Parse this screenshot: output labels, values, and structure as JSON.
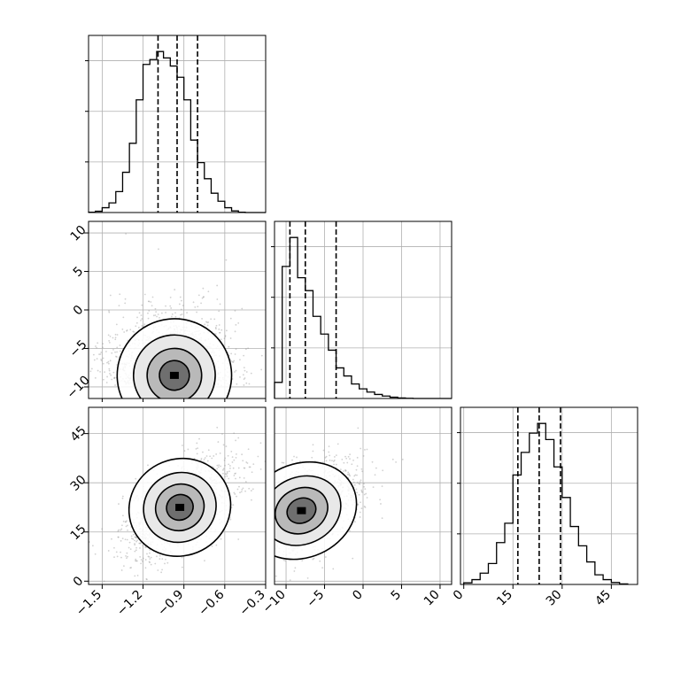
{
  "chart_data": {
    "type": "corner",
    "grid": true,
    "parameters": [
      {
        "ticks": [
          -1.5,
          -1.2,
          -0.9,
          -0.6,
          -0.3
        ],
        "tick_labels": [
          "−1.5",
          "−1.2",
          "−0.9",
          "−0.6",
          "−0.3"
        ],
        "range": [
          -1.6,
          -0.3
        ]
      },
      {
        "ticks": [
          -10,
          -5,
          0,
          5,
          10
        ],
        "tick_labels": [
          "−10",
          "−5",
          "0",
          "5",
          "10"
        ],
        "range": [
          -11.5,
          11.5
        ]
      },
      {
        "ticks": [
          0,
          15,
          30,
          45
        ],
        "tick_labels": [
          "0",
          "15",
          "30",
          "45"
        ],
        "range": [
          -1,
          53
        ]
      }
    ],
    "histograms": [
      {
        "param": 0,
        "bins": [
          -1.6,
          -1.55,
          -1.5,
          -1.45,
          -1.4,
          -1.35,
          -1.3,
          -1.25,
          -1.2,
          -1.15,
          -1.1,
          -1.05,
          -1.0,
          -0.95,
          -0.9,
          -0.85,
          -0.8,
          -0.75,
          -0.7,
          -0.65,
          -0.6,
          -0.55,
          -0.5,
          -0.45,
          -0.4,
          -0.35,
          -0.3
        ],
        "counts": [
          0.002,
          0.008,
          0.03,
          0.06,
          0.13,
          0.25,
          0.43,
          0.7,
          0.92,
          0.95,
          1.0,
          0.96,
          0.91,
          0.84,
          0.7,
          0.45,
          0.31,
          0.21,
          0.12,
          0.07,
          0.03,
          0.01,
          0.002,
          0,
          0,
          0
        ],
        "quantiles": [
          -1.09,
          -0.95,
          -0.8
        ]
      },
      {
        "param": 1,
        "bins": [
          -11.5,
          -10.5,
          -9.5,
          -8.5,
          -7.5,
          -6.5,
          -5.5,
          -4.5,
          -3.5,
          -2.5,
          -1.5,
          -0.5,
          0.5,
          1.5,
          2.5,
          3.5,
          4.5,
          5.5,
          6.5,
          7.5,
          8.5,
          9.5,
          10.5,
          11.5
        ],
        "counts": [
          0.1,
          0.82,
          1.0,
          0.75,
          0.67,
          0.51,
          0.4,
          0.3,
          0.19,
          0.14,
          0.09,
          0.06,
          0.04,
          0.025,
          0.015,
          0.008,
          0.003,
          0.001,
          0,
          0,
          0,
          0,
          0
        ],
        "quantiles": [
          -9.5,
          -7.5,
          -3.5
        ]
      },
      {
        "param": 2,
        "bins": [
          0,
          2.5,
          5,
          7.5,
          10,
          12.5,
          15,
          17.5,
          20,
          22.5,
          25,
          27.5,
          30,
          32.5,
          35,
          37.5,
          40,
          42.5,
          45,
          47.5,
          50
        ],
        "counts": [
          0.01,
          0.03,
          0.07,
          0.13,
          0.26,
          0.38,
          0.68,
          0.82,
          0.94,
          1.0,
          0.9,
          0.73,
          0.54,
          0.36,
          0.24,
          0.14,
          0.06,
          0.03,
          0.012,
          0.003
        ],
        "quantiles": [
          16.5,
          23,
          29.5
        ]
      }
    ],
    "panels_2d": [
      {
        "x_param": 0,
        "y_param": 1,
        "center": [
          -0.97,
          -8.5
        ],
        "spread": [
          0.2,
          3.5
        ],
        "rho": 0.1
      },
      {
        "x_param": 0,
        "y_param": 2,
        "center": [
          -0.93,
          22.5
        ],
        "spread": [
          0.18,
          7.0
        ],
        "rho": 0.55
      },
      {
        "x_param": 1,
        "y_param": 2,
        "center": [
          -8.0,
          21.5
        ],
        "spread": [
          3.5,
          6.8
        ],
        "rho": 0.55
      }
    ]
  }
}
